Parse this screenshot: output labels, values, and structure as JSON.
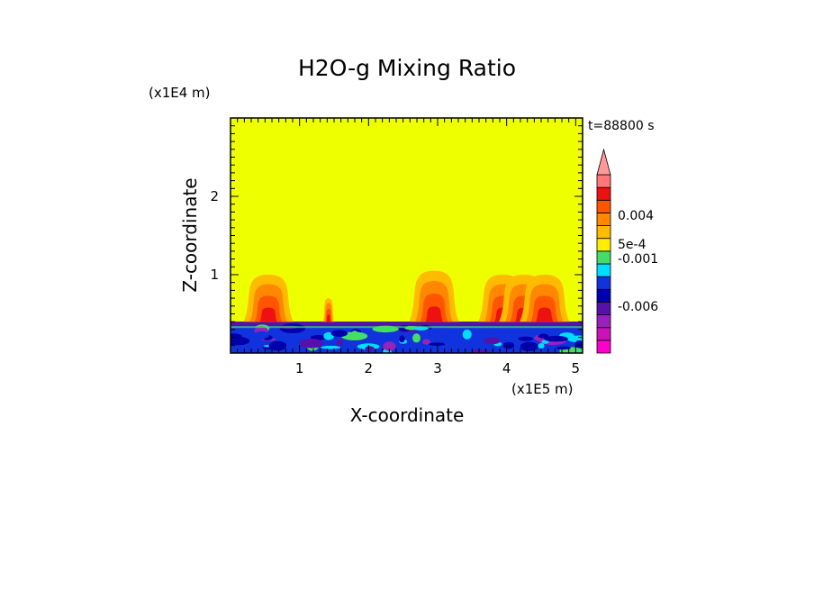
{
  "chart_data": {
    "type": "heatmap",
    "title": "H2O-g Mixing Ratio",
    "xlabel": "X-coordinate",
    "ylabel": "Z-coordinate",
    "x_unit": "(x1E5 m)",
    "y_unit": "(x1E4 m)",
    "time_label": "t=88800 s",
    "xlim": [
      0,
      5.1
    ],
    "ylim": [
      0,
      3
    ],
    "x_ticks": [
      1,
      2,
      3,
      4,
      5
    ],
    "y_ticks": [
      1,
      2
    ],
    "background_value_color": "#eeff00",
    "colorbar": {
      "labels": [
        "0.004",
        "5e-4",
        "-0.001",
        "-0.006"
      ],
      "bands": [
        {
          "color": "#ff00cc"
        },
        {
          "color": "#cc11bb"
        },
        {
          "color": "#9922bb"
        },
        {
          "color": "#5511aa"
        },
        {
          "color": "#0000aa"
        },
        {
          "color": "#1133dd"
        },
        {
          "color": "#00ddff"
        },
        {
          "color": "#44dd66"
        },
        {
          "color": "#ffee00"
        },
        {
          "color": "#ffbb00"
        },
        {
          "color": "#ff8800"
        },
        {
          "color": "#ff5500"
        },
        {
          "color": "#ee1111"
        },
        {
          "color": "#ff7777"
        }
      ],
      "arrow_color": "#ff9999"
    },
    "features": [
      {
        "kind": "plume",
        "x": 0.55,
        "top_z": 1.0
      },
      {
        "kind": "plume",
        "x": 1.42,
        "top_z": 0.7
      },
      {
        "kind": "plume",
        "x": 2.95,
        "top_z": 1.05
      },
      {
        "kind": "plume",
        "x": 3.95,
        "top_z": 1.0
      },
      {
        "kind": "plume",
        "x": 4.25,
        "top_z": 1.0
      },
      {
        "kind": "plume",
        "x": 4.55,
        "top_z": 1.0
      }
    ],
    "boundary_layer_top_z": 0.4
  }
}
